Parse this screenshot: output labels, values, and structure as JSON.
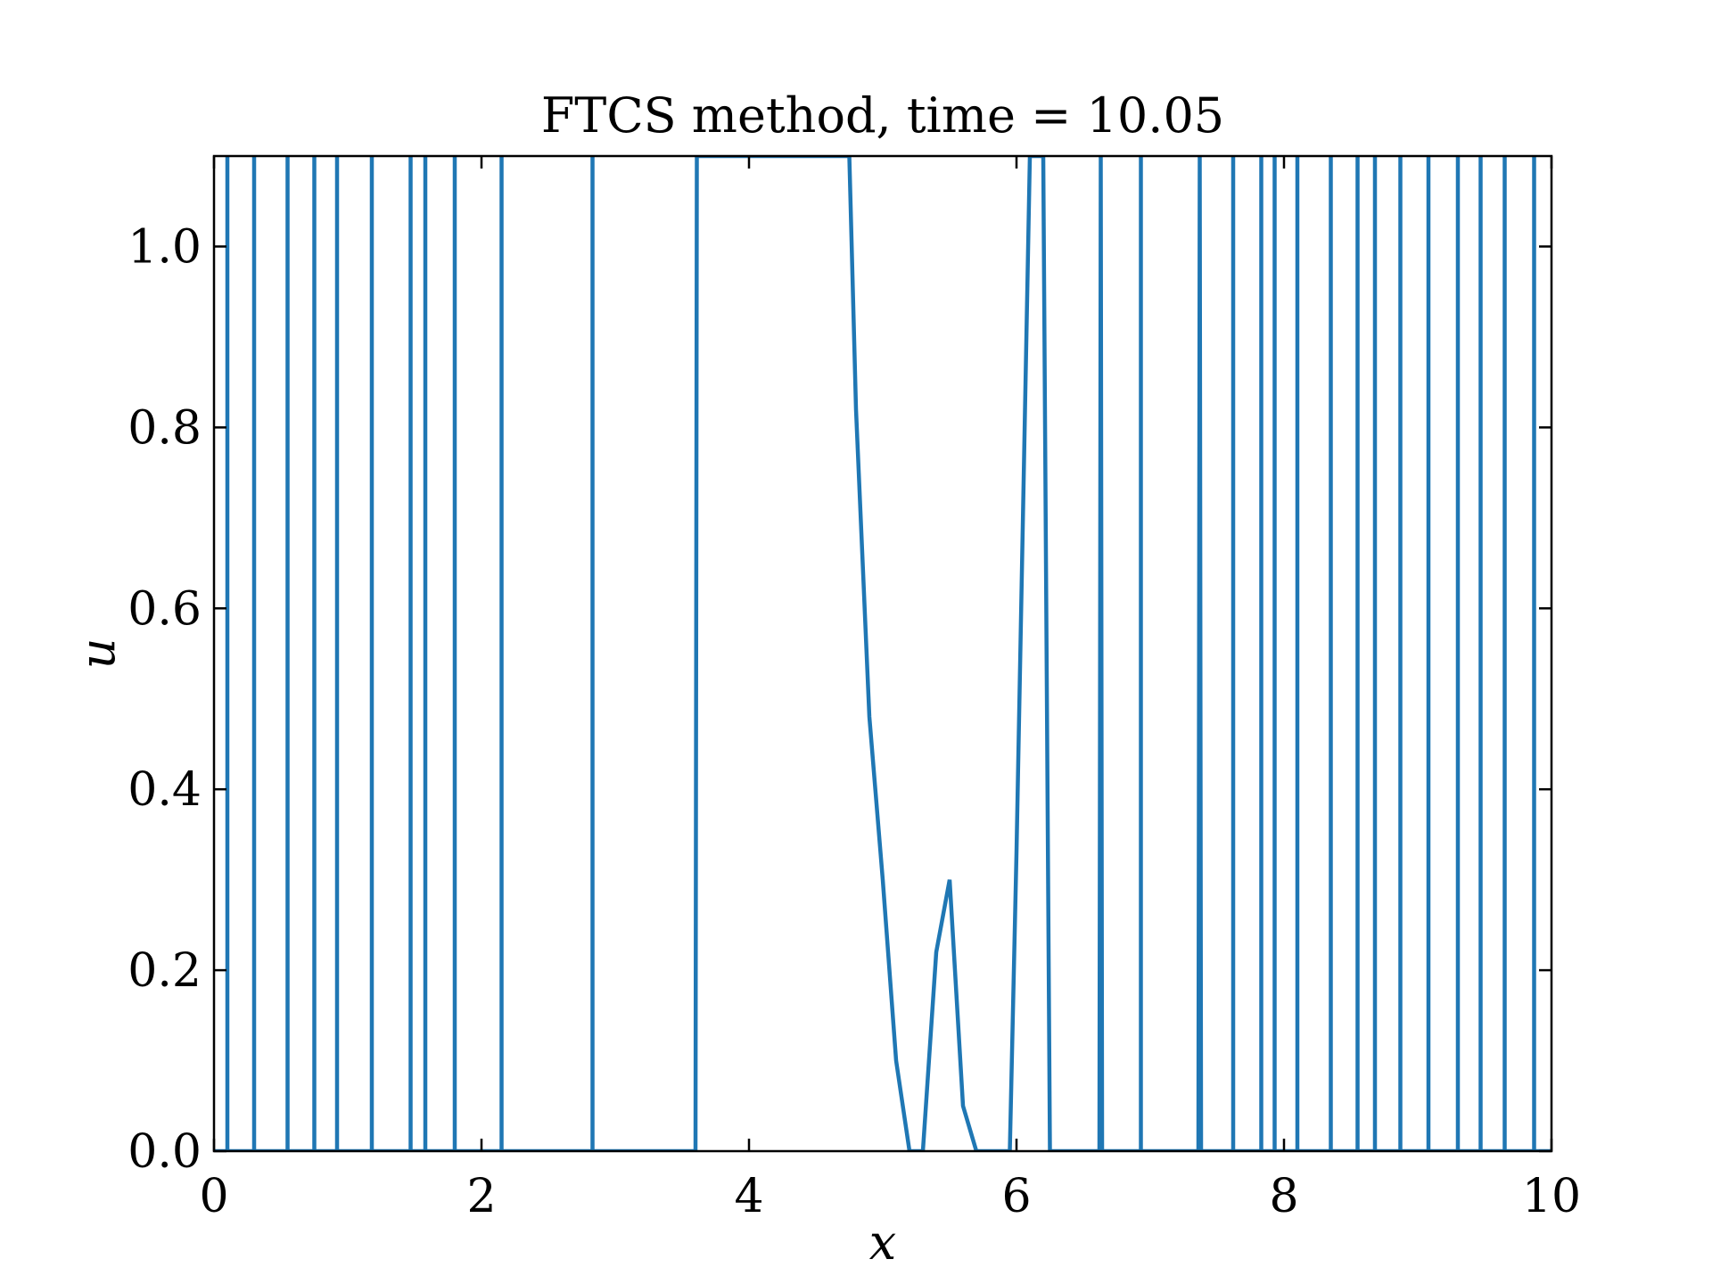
{
  "chart_data": {
    "type": "line",
    "title": "FTCS method, time = 10.05",
    "xlabel": "x",
    "ylabel": "u",
    "xlim": [
      0,
      10
    ],
    "ylim": [
      0,
      1.1
    ],
    "grid": false,
    "legend": "none",
    "series_color": "#1f77b4",
    "x_ticks": [
      0,
      2,
      4,
      6,
      8,
      10
    ],
    "x_tick_labels": [
      "0",
      "2",
      "4",
      "6",
      "8",
      "10"
    ],
    "y_ticks": [
      0.0,
      0.2,
      0.4,
      0.6,
      0.8,
      1.0
    ],
    "y_tick_labels": [
      "0.0",
      "0.2",
      "0.4",
      "0.6",
      "0.8",
      "1.0"
    ],
    "series": [
      {
        "x": [
          0.0,
          0.1,
          0.1,
          0.1,
          0.3,
          0.3,
          0.3,
          0.55,
          0.55,
          0.55,
          0.75,
          0.75,
          0.75,
          0.92,
          0.92,
          0.92,
          1.18,
          1.18,
          1.18,
          1.47,
          1.47,
          1.47,
          1.58,
          1.58,
          1.58,
          1.8,
          1.8,
          1.8,
          2.15,
          2.15,
          2.15,
          2.83,
          2.83,
          2.83,
          3.6,
          3.61,
          3.62,
          4.6,
          4.75,
          4.8,
          4.9,
          5.0,
          5.1,
          5.2,
          5.3,
          5.4,
          5.5,
          5.6,
          5.7,
          5.95,
          6.0,
          6.1,
          6.15,
          6.2,
          6.25,
          6.4,
          6.62,
          6.63,
          6.64,
          6.93,
          6.93,
          6.93,
          7.36,
          7.37,
          7.38,
          7.62,
          7.62,
          7.62,
          7.83,
          7.83,
          7.83,
          7.93,
          7.93,
          7.93,
          8.1,
          8.1,
          8.1,
          8.35,
          8.35,
          8.35,
          8.55,
          8.55,
          8.55,
          8.68,
          8.68,
          8.68,
          8.87,
          8.87,
          8.87,
          9.08,
          9.08,
          9.08,
          9.3,
          9.3,
          9.3,
          9.47,
          9.47,
          9.47,
          9.65,
          9.65,
          9.65,
          9.87,
          9.87,
          9.87,
          10.0
        ],
        "y": [
          0.0,
          0.0,
          1.1,
          0.0,
          0.0,
          1.1,
          0.0,
          0.0,
          1.1,
          0.0,
          0.0,
          1.1,
          0.0,
          0.0,
          1.1,
          0.0,
          0.0,
          1.1,
          0.0,
          0.0,
          1.1,
          0.0,
          0.0,
          1.1,
          0.0,
          0.0,
          1.1,
          0.0,
          0.0,
          1.1,
          0.0,
          0.0,
          1.1,
          0.0,
          0.0,
          1.1,
          1.1,
          1.1,
          1.1,
          0.82,
          0.48,
          0.3,
          0.1,
          0.0,
          0.0,
          0.22,
          0.3,
          0.05,
          0.0,
          0.0,
          0.33,
          1.1,
          1.1,
          1.1,
          0.0,
          0.0,
          0.0,
          1.1,
          0.0,
          0.0,
          1.1,
          0.0,
          0.0,
          1.1,
          0.0,
          0.0,
          1.1,
          0.0,
          0.0,
          1.1,
          0.0,
          0.0,
          1.1,
          0.0,
          0.0,
          1.1,
          0.0,
          0.0,
          1.1,
          0.0,
          0.0,
          1.1,
          0.0,
          0.0,
          1.1,
          0.0,
          0.0,
          1.1,
          0.0,
          0.0,
          1.1,
          0.0,
          0.0,
          1.1,
          0.0,
          0.0,
          1.1,
          0.0,
          0.0,
          1.1,
          0.0,
          0.0,
          1.1,
          0.0,
          0.0
        ]
      }
    ]
  }
}
